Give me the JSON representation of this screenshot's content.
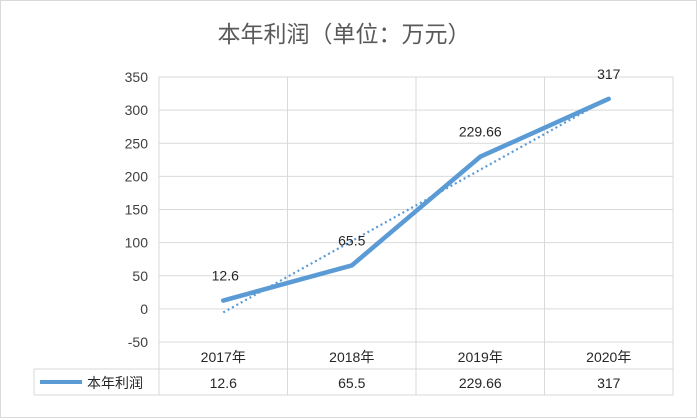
{
  "chart_data": {
    "type": "line",
    "title": "本年利润（单位：万元）",
    "categories": [
      "2017年",
      "2018年",
      "2019年",
      "2020年"
    ],
    "series": [
      {
        "name": "本年利润",
        "values": [
          12.6,
          65.5,
          229.66,
          317
        ],
        "data_labels": [
          "12.6",
          "65.5",
          "229.66",
          "317"
        ],
        "color": "#5B9BD5"
      }
    ],
    "trendline": {
      "type": "linear",
      "style": "dotted",
      "color": "#5B9BD5"
    },
    "y_ticks": [
      "350",
      "300",
      "250",
      "200",
      "150",
      "100",
      "50",
      "0",
      "-50"
    ],
    "ylim": [
      -50,
      350
    ],
    "xlabel": "",
    "ylabel": "",
    "grid": true,
    "legend": "data-table",
    "data_table": true
  }
}
